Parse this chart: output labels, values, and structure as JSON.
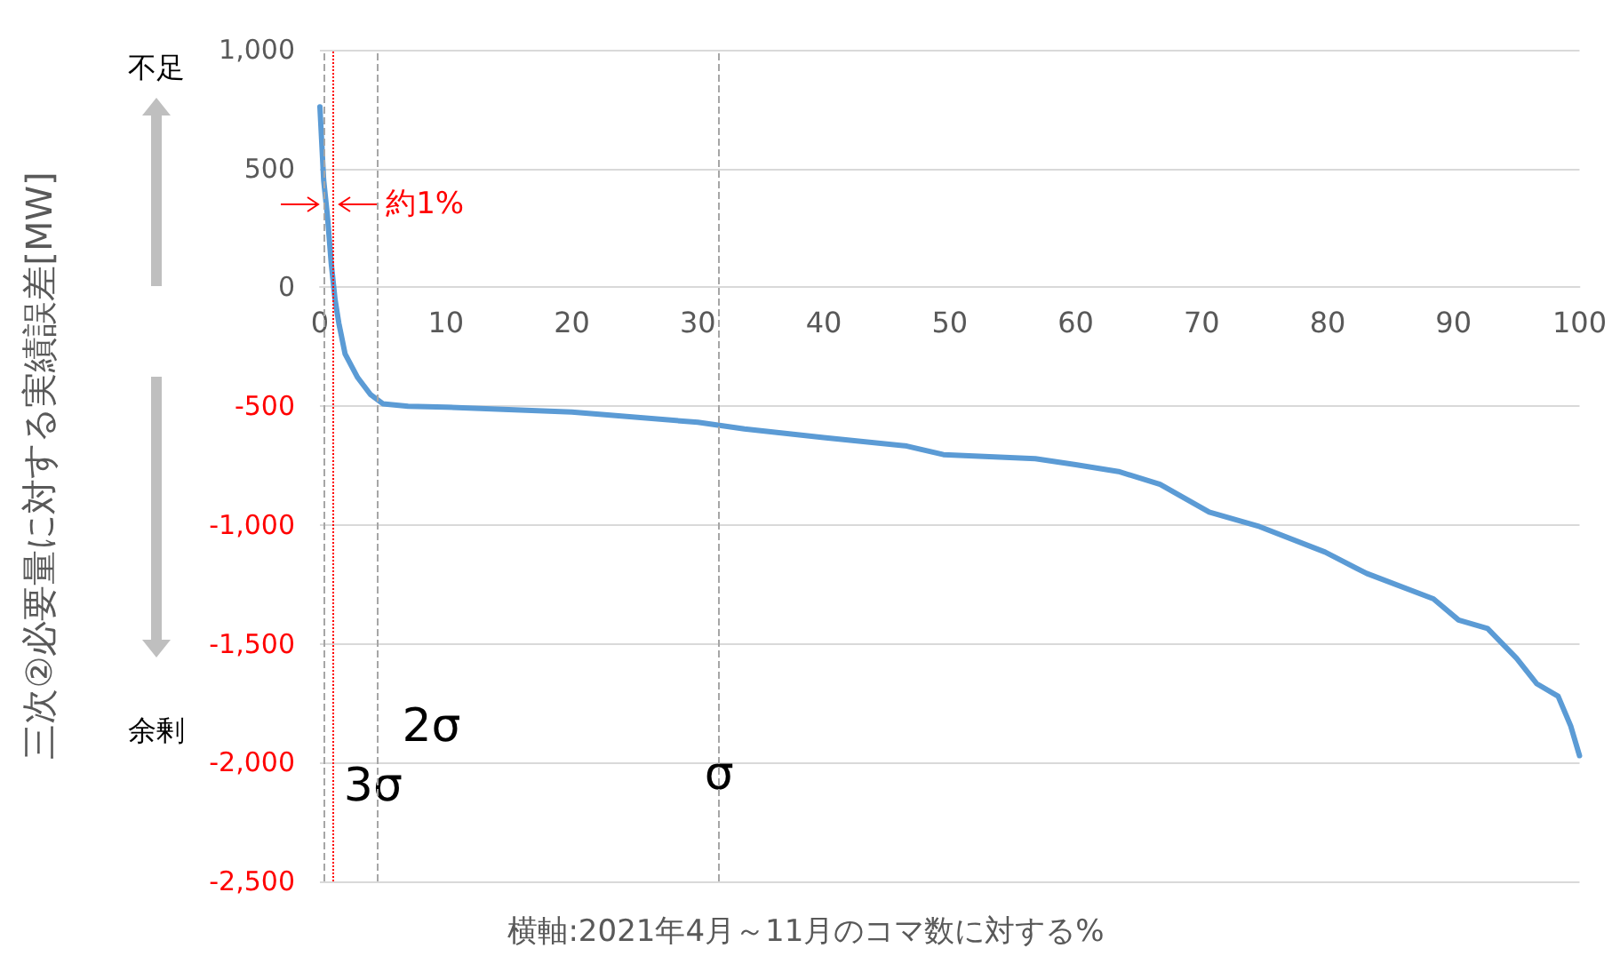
{
  "chart_data": {
    "type": "line",
    "xlabel": "横軸:2021年4月～11月のコマ数に対する%",
    "ylabel": "三次②必要量に対する実績誤差[MW]",
    "annotations": [
      "不足",
      "余剰"
    ],
    "x": [
      0,
      0.3,
      0.6,
      0.9,
      1.2,
      1.5,
      2,
      3,
      4,
      5,
      7,
      10,
      20,
      30,
      33.7,
      40,
      46.6,
      49.5,
      56.8,
      60,
      63.4,
      66.7,
      70.6,
      74.6,
      79.8,
      83.1,
      88.4,
      90.4,
      92.7,
      95,
      96.6,
      98.3,
      99.3,
      100
    ],
    "series": [
      {
        "color": "#5b9bd5",
        "values": [
          760,
          450,
          300,
          100,
          -50,
          -150,
          -280,
          -380,
          -450,
          -490,
          -500,
          -504,
          -525,
          -568,
          -596,
          -632,
          -668,
          -704,
          -721,
          -746,
          -775,
          -829,
          -946,
          -1007,
          -1114,
          -1204,
          -1311,
          -1400,
          -1436,
          -1561,
          -1668,
          -1721,
          -1846,
          -1971
        ]
      }
    ],
    "xlim": [
      0,
      100
    ],
    "xticks": [
      0,
      10,
      20,
      30,
      40,
      50,
      60,
      70,
      80,
      90,
      100
    ],
    "ylim": [
      -2500,
      1000
    ],
    "yticks": [
      {
        "value": -2500,
        "label": "-2,500"
      },
      {
        "value": -2000,
        "label": "-2,000"
      },
      {
        "value": -1500,
        "label": "-1,500"
      },
      {
        "value": -1000,
        "label": "-1,000"
      },
      {
        "value": -500,
        "label": "-500"
      },
      0,
      500,
      {
        "value": 1000,
        "label": "1,000"
      }
    ],
    "ref_lines": [
      {
        "axis": "x",
        "value": 0.27,
        "label": "3σ",
        "color": "#a6a6a6",
        "line_style": "dashed"
      },
      {
        "axis": "x",
        "value": 1,
        "label": "約1%",
        "color": "#ff0000",
        "line_style": "dotted"
      },
      {
        "axis": "x",
        "value": 4.55,
        "label": "2σ",
        "color": "#a6a6a6",
        "line_style": "dashed"
      },
      {
        "axis": "x",
        "value": 31.7,
        "label": "σ",
        "color": "#a6a6a6",
        "line_style": "dashed"
      }
    ],
    "grid": "y",
    "marker": "none",
    "line_style": "solid"
  }
}
